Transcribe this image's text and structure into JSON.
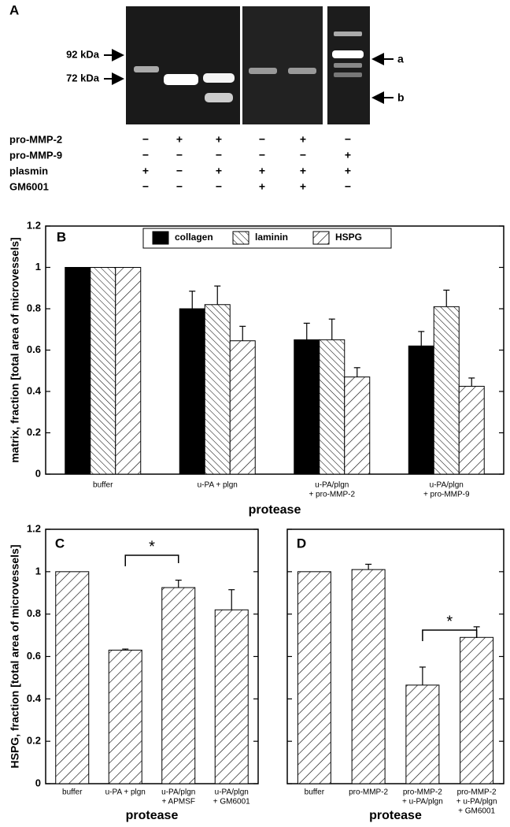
{
  "gel": {
    "panel": "A",
    "markers": [
      "92 kDa",
      "72 kDa"
    ],
    "side_labels": [
      "a",
      "b"
    ],
    "rows": [
      {
        "label": "pro-MMP-2",
        "signs": [
          "−",
          "+",
          "+",
          "−",
          "+",
          "−"
        ]
      },
      {
        "label": "pro-MMP-9",
        "signs": [
          "−",
          "−",
          "−",
          "−",
          "−",
          "+"
        ]
      },
      {
        "label": "plasmin",
        "signs": [
          "+",
          "−",
          "+",
          "+",
          "+",
          "+"
        ]
      },
      {
        "label": "GM6001",
        "signs": [
          "−",
          "−",
          "−",
          "+",
          "+",
          "−"
        ]
      }
    ]
  },
  "chart_data": [
    {
      "type": "bar",
      "panel": "B",
      "ylabel": "matrix, fraction [total area of microvessels]",
      "xlabel": "protease",
      "categories": [
        [
          "buffer"
        ],
        [
          "u-PA + plgn"
        ],
        [
          "u-PA/plgn",
          "+ pro-MMP-2"
        ],
        [
          "u-PA/plgn",
          "+ pro-MMP-9"
        ]
      ],
      "series": [
        {
          "name": "collagen",
          "color": "#000000",
          "pattern": "solid",
          "values": [
            1,
            0.8,
            0.65,
            0.62
          ],
          "errors": [
            null,
            0.085,
            0.08,
            0.07
          ]
        },
        {
          "name": "laminin",
          "color": "#000000",
          "pattern": "backslash",
          "values": [
            1,
            0.82,
            0.65,
            0.81
          ],
          "errors": [
            null,
            0.09,
            0.1,
            0.08
          ]
        },
        {
          "name": "HSPG",
          "color": "#000000",
          "pattern": "slash",
          "values": [
            1,
            0.645,
            0.47,
            0.425
          ],
          "errors": [
            null,
            0.07,
            0.045,
            0.04
          ]
        }
      ],
      "ylim": [
        0,
        1.2
      ],
      "yticks": [
        0,
        0.2,
        0.4,
        0.6,
        0.8,
        1,
        1.2
      ],
      "legend": "top"
    },
    {
      "type": "bar",
      "panel": "C",
      "ylabel": "HSPG, fraction [total area of microvessels]",
      "xlabel": "protease",
      "categories": [
        [
          "buffer"
        ],
        [
          "u-PA + plgn"
        ],
        [
          "u-PA/plgn",
          "+ APMSF"
        ],
        [
          "u-PA/plgn",
          "+ GM6001"
        ]
      ],
      "pattern": "slash",
      "color": "#000000",
      "values": [
        1,
        0.63,
        0.925,
        0.82
      ],
      "errors": [
        null,
        0.005,
        0.035,
        0.095
      ],
      "annotation": "*",
      "ylim": [
        0,
        1.2
      ],
      "yticks": [
        0,
        0.2,
        0.4,
        0.6,
        0.8,
        1,
        1.2
      ],
      "tick_labels": true
    },
    {
      "type": "bar",
      "panel": "D",
      "xlabel": "protease",
      "categories": [
        [
          "buffer"
        ],
        [
          "pro-MMP-2"
        ],
        [
          "pro-MMP-2",
          "+ u-PA/plgn"
        ],
        [
          "pro-MMP-2",
          "+ u-PA/plgn",
          "+ GM6001"
        ]
      ],
      "pattern": "slash",
      "color": "#000000",
      "values": [
        1,
        1.01,
        0.465,
        0.69
      ],
      "errors": [
        null,
        0.025,
        0.085,
        0.05
      ],
      "annotation": "*",
      "ylim": [
        0,
        1.2
      ],
      "yticks": [
        0,
        0.2,
        0.4,
        0.6,
        0.8,
        1,
        1.2
      ],
      "tick_labels": false
    }
  ]
}
